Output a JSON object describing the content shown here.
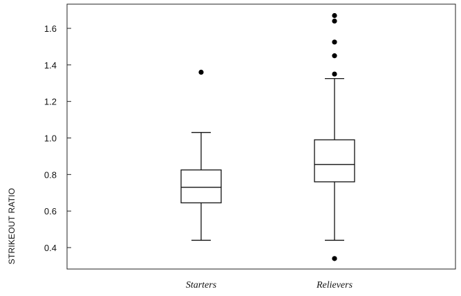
{
  "chart_data": {
    "type": "box",
    "title": "",
    "xlabel": "",
    "ylabel": "STRIKEOUT RATIO",
    "ylim": [
      0.33,
      1.7
    ],
    "yticks": [
      0.4,
      0.6,
      0.8,
      1.0,
      1.2,
      1.4,
      1.6
    ],
    "ytick_labels": [
      "0.4",
      "0.6",
      "0.8",
      "1.0",
      "1.2",
      "1.4",
      "1.6"
    ],
    "grid": false,
    "categories": [
      "Starters",
      "Relievers"
    ],
    "boxes": [
      {
        "category": "Starters",
        "whisker_low": 0.44,
        "q1": 0.645,
        "median": 0.73,
        "q3": 0.825,
        "whisker_high": 1.03,
        "outliers": [
          1.36
        ]
      },
      {
        "category": "Relievers",
        "whisker_low": 0.44,
        "q1": 0.76,
        "median": 0.855,
        "q3": 0.99,
        "whisker_high": 1.325,
        "outliers": [
          0.34,
          1.35,
          1.45,
          1.525,
          1.64,
          1.67
        ]
      }
    ]
  }
}
